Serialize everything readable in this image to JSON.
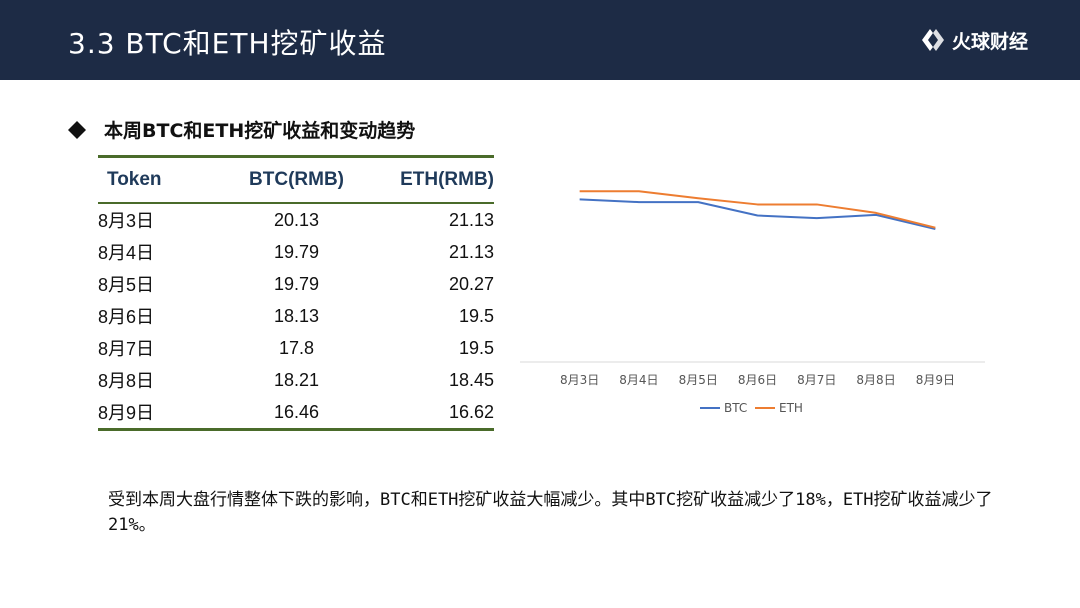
{
  "header": {
    "title": "3.3  BTC和ETH挖矿收益",
    "brand_text": "火球财经"
  },
  "section": {
    "heading": "本周BTC和ETH挖矿收益和变动趋势"
  },
  "table": {
    "headers": [
      "Token",
      "BTC(RMB)",
      "ETH(RMB)"
    ],
    "rows": [
      [
        "8月3日",
        "20.13",
        "21.13"
      ],
      [
        "8月4日",
        "19.79",
        "21.13"
      ],
      [
        "8月5日",
        "19.79",
        "20.27"
      ],
      [
        "8月6日",
        "18.13",
        "19.5"
      ],
      [
        "8月7日",
        "17.8",
        "19.5"
      ],
      [
        "8月8日",
        "18.21",
        "18.45"
      ],
      [
        "8月9日",
        "16.46",
        "16.62"
      ]
    ]
  },
  "chart_data": {
    "type": "line",
    "categories": [
      "8月3日",
      "8月4日",
      "8月5日",
      "8月6日",
      "8月7日",
      "8月8日",
      "8月9日"
    ],
    "series": [
      {
        "name": "BTC",
        "color": "#4472c4",
        "values": [
          20.13,
          19.79,
          19.79,
          18.13,
          17.8,
          18.21,
          16.46
        ]
      },
      {
        "name": "ETH",
        "color": "#ed7d31",
        "values": [
          21.13,
          21.13,
          20.27,
          19.5,
          19.5,
          18.45,
          16.62
        ]
      }
    ],
    "ylim": [
      0,
      25
    ],
    "grid": false,
    "legend": "bottom"
  },
  "paragraph": "受到本周大盘行情整体下跌的影响，BTC和ETH挖矿收益大幅减少。其中BTC挖矿收益减少了18%，ETH挖矿收益减少了21%。"
}
